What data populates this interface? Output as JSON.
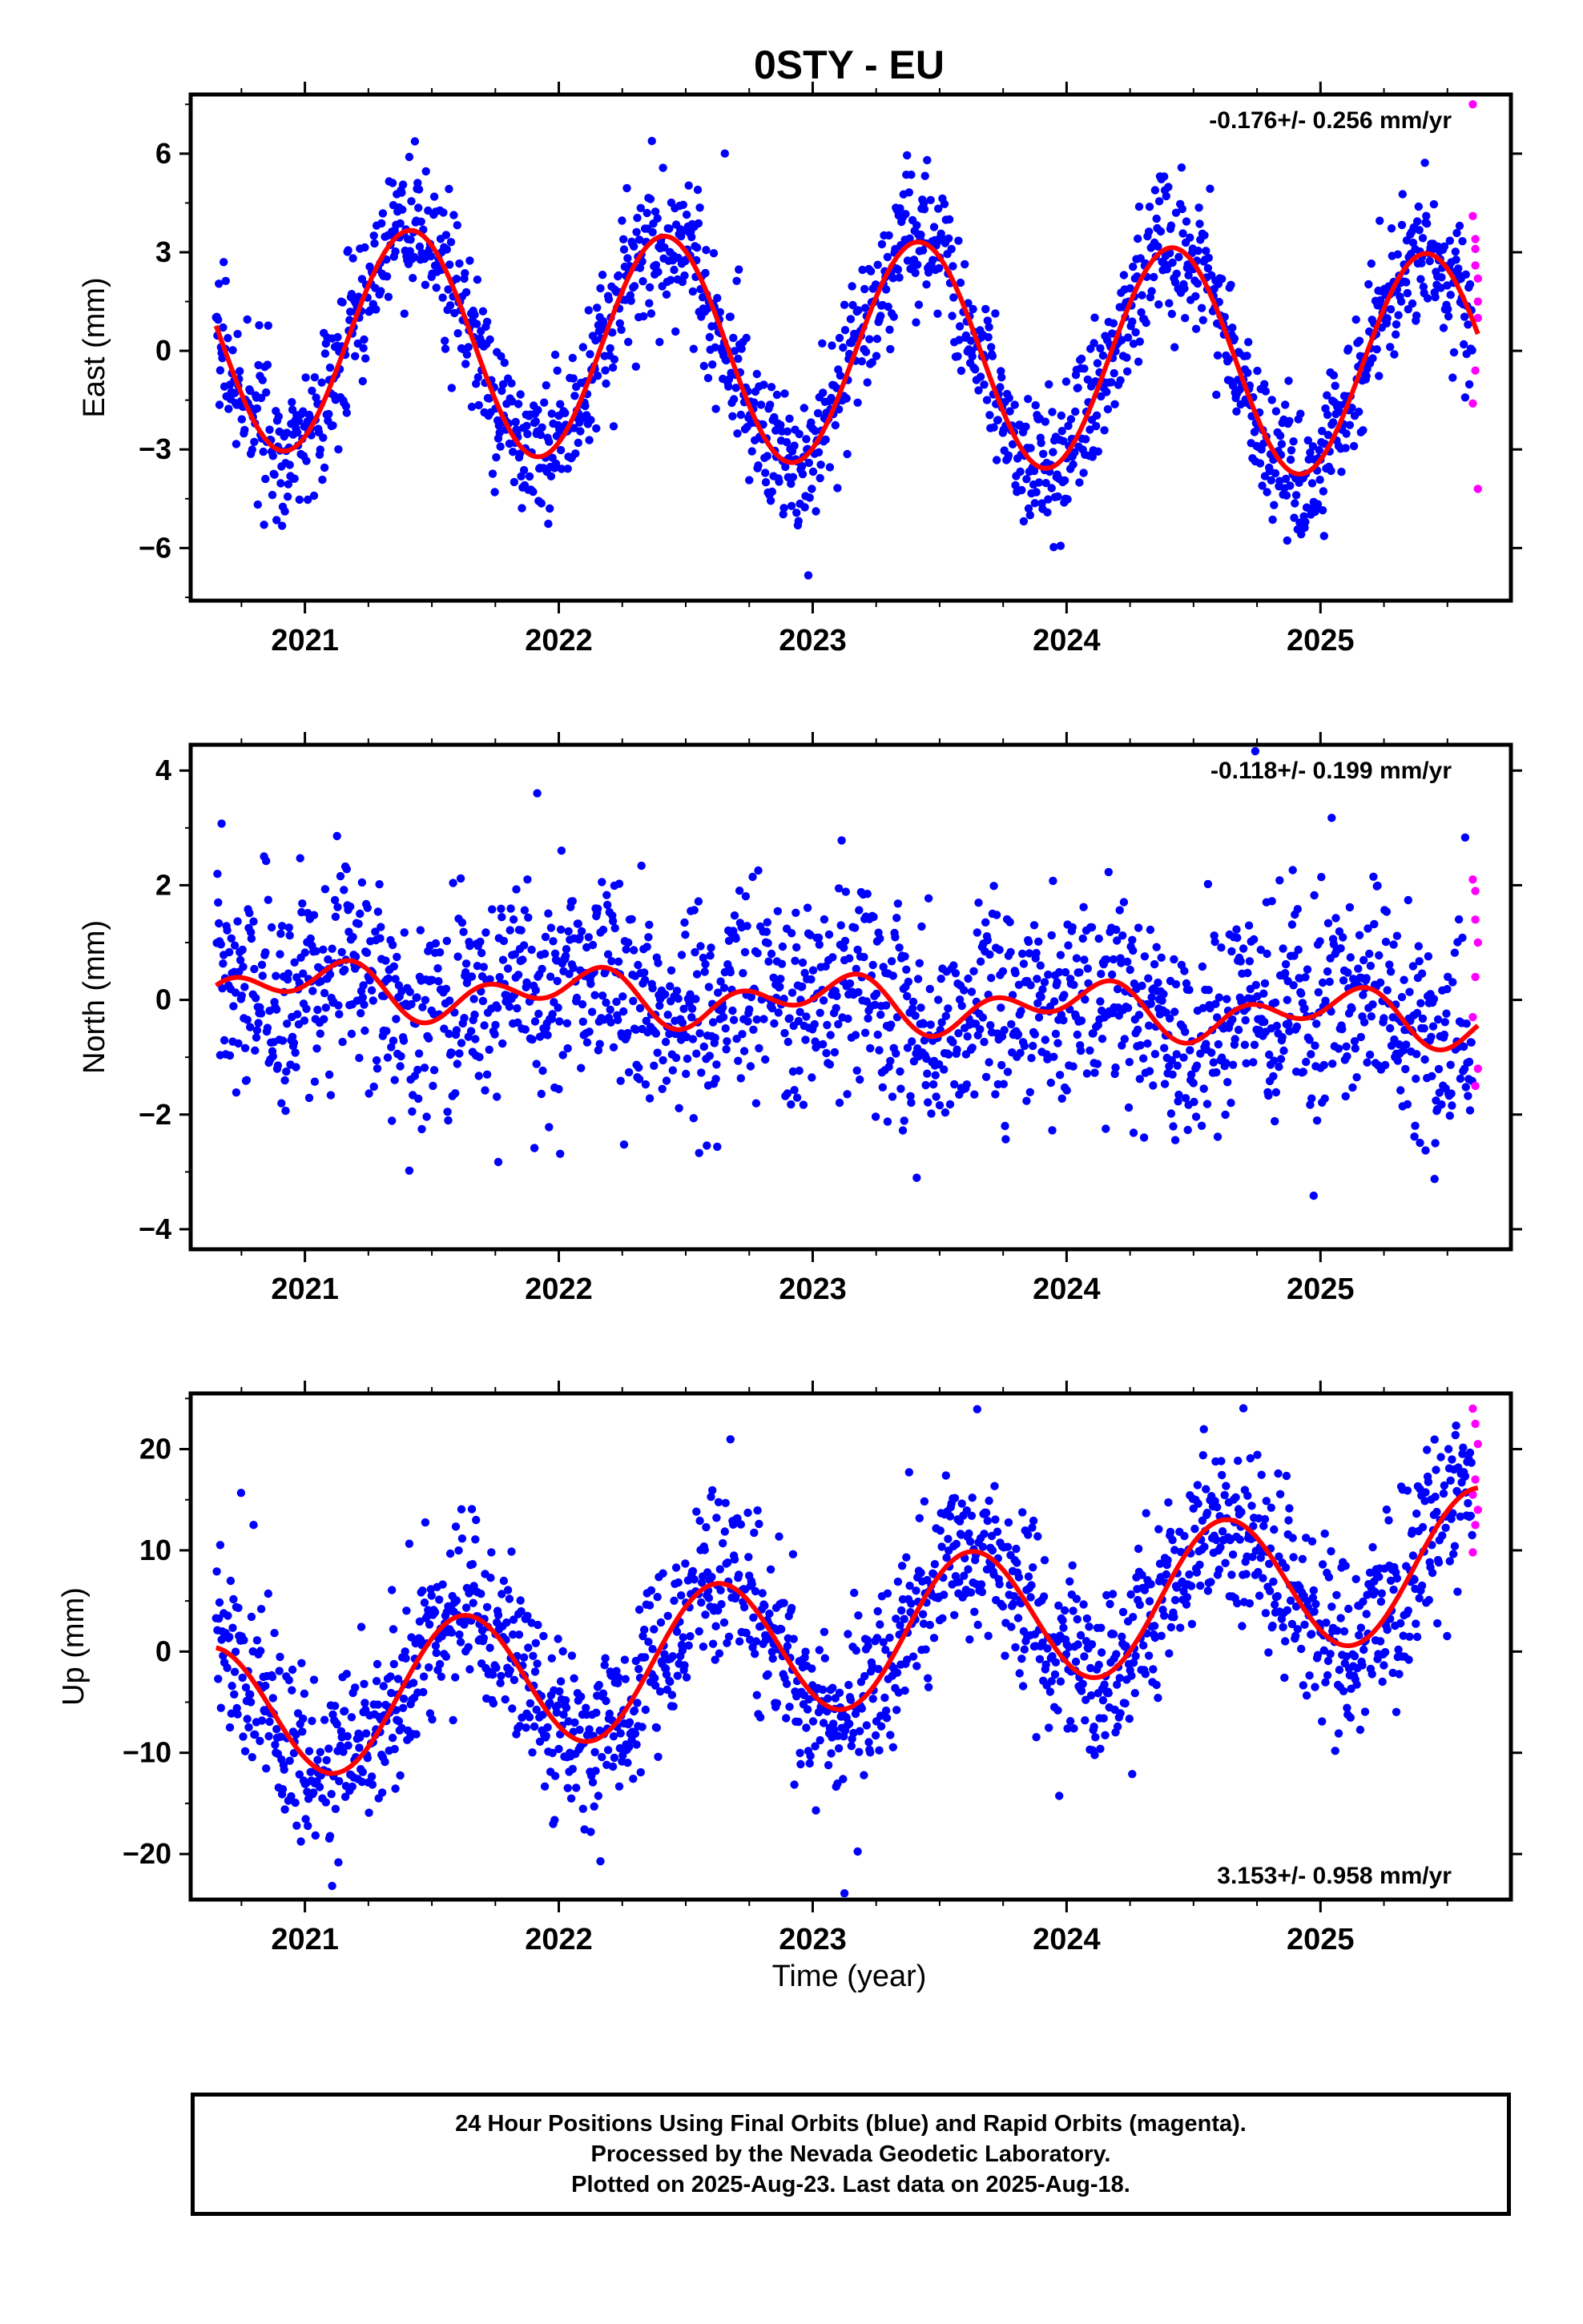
{
  "figure": {
    "title": "0STY - EU",
    "xlabel": "Time (year)",
    "colors": {
      "final": "#0000ff",
      "rapid": "#ff00ff",
      "fit": "#ff0000",
      "frame": "#000000"
    }
  },
  "footer": {
    "line1": "24 Hour Positions Using Final Orbits (blue) and Rapid Orbits (magenta).",
    "line2": "Processed by the Nevada Geodetic Laboratory.",
    "line3": "Plotted on 2025-Aug-23. Last data on 2025-Aug-18."
  },
  "chart_data": [
    {
      "type": "scatter",
      "ylabel": "East (mm)",
      "xlim": [
        2020.55,
        2025.75
      ],
      "ylim": [
        -7.6,
        7.8
      ],
      "xticks": [
        2021,
        2022,
        2023,
        2024,
        2025
      ],
      "xticklabels": [
        "2021",
        "2022",
        "2023",
        "2024",
        "2025"
      ],
      "yticks": [
        -6,
        -3,
        0,
        3,
        6
      ],
      "yticklabels": [
        "−6",
        "−3",
        "0",
        "3",
        "6"
      ],
      "rate_label": "-0.176+/- 0.256 mm/yr",
      "rate_position": "top-right",
      "fit": {
        "x0": 2020.65,
        "x1": 2025.62,
        "offset": 0.4,
        "rate": -0.176,
        "annual_amp": 3.4,
        "annual_phase": 0.417,
        "semi_amp": 0.0,
        "semi_phase": 0.0
      },
      "scatter_noise": 1.05,
      "rapid_points": [
        {
          "x": 2025.6,
          "y": 7.5
        },
        {
          "x": 2025.6,
          "y": 4.1
        },
        {
          "x": 2025.61,
          "y": 3.4
        },
        {
          "x": 2025.61,
          "y": 3.1
        },
        {
          "x": 2025.61,
          "y": 2.6
        },
        {
          "x": 2025.62,
          "y": 2.2
        },
        {
          "x": 2025.62,
          "y": 1.5
        },
        {
          "x": 2025.62,
          "y": 1.0
        },
        {
          "x": 2025.61,
          "y": -0.6
        },
        {
          "x": 2025.6,
          "y": -1.6
        },
        {
          "x": 2025.62,
          "y": -4.2
        }
      ]
    },
    {
      "type": "scatter",
      "ylabel": "North (mm)",
      "xlim": [
        2020.55,
        2025.75
      ],
      "ylim": [
        -4.35,
        4.45
      ],
      "xticks": [
        2021,
        2022,
        2023,
        2024,
        2025
      ],
      "xticklabels": [
        "2021",
        "2022",
        "2023",
        "2024",
        "2025"
      ],
      "yticks": [
        -4,
        -2,
        0,
        2,
        4
      ],
      "yticklabels": [
        "−4",
        "−2",
        "0",
        "2",
        "4"
      ],
      "rate_label": "-0.118+/- 0.199 mm/yr",
      "rate_position": "top-right",
      "fit": {
        "x0": 2020.65,
        "x1": 2025.62,
        "offset": 0.25,
        "rate": -0.118,
        "annual_amp": 0.3,
        "annual_phase": 0.05,
        "semi_amp": 0.3,
        "semi_phase": 0.2
      },
      "scatter_noise": 0.9,
      "rapid_points": [
        {
          "x": 2025.6,
          "y": 2.1
        },
        {
          "x": 2025.61,
          "y": 1.9
        },
        {
          "x": 2025.61,
          "y": 1.4
        },
        {
          "x": 2025.62,
          "y": 1.0
        },
        {
          "x": 2025.61,
          "y": 0.4
        },
        {
          "x": 2025.6,
          "y": -0.3
        },
        {
          "x": 2025.62,
          "y": -1.2
        },
        {
          "x": 2025.61,
          "y": -1.5
        }
      ]
    },
    {
      "type": "scatter",
      "ylabel": "Up (mm)",
      "xlim": [
        2020.55,
        2025.75
      ],
      "ylim": [
        -24.5,
        25.5
      ],
      "xticks": [
        2021,
        2022,
        2023,
        2024,
        2025
      ],
      "xticklabels": [
        "2021",
        "2022",
        "2023",
        "2024",
        "2025"
      ],
      "yticks": [
        -20,
        -10,
        0,
        10,
        20
      ],
      "yticklabels": [
        "−20",
        "−10",
        "0",
        "10",
        "20"
      ],
      "rate_label": "3.153+/- 0.958 mm/yr",
      "rate_position": "bottom-right",
      "fit": {
        "x0": 2020.65,
        "x1": 2025.62,
        "offset": -6.5,
        "rate": 3.153,
        "annual_amp": 7.0,
        "annual_phase": 0.62,
        "semi_amp": 0.0,
        "semi_phase": 0.0
      },
      "scatter_noise": 4.3,
      "rapid_points": [
        {
          "x": 2025.6,
          "y": 24.0
        },
        {
          "x": 2025.61,
          "y": 22.5
        },
        {
          "x": 2025.62,
          "y": 20.5
        },
        {
          "x": 2025.61,
          "y": 17.0
        },
        {
          "x": 2025.6,
          "y": 15.5
        },
        {
          "x": 2025.62,
          "y": 14.0
        },
        {
          "x": 2025.61,
          "y": 12.5
        },
        {
          "x": 2025.6,
          "y": 9.8
        }
      ]
    }
  ]
}
